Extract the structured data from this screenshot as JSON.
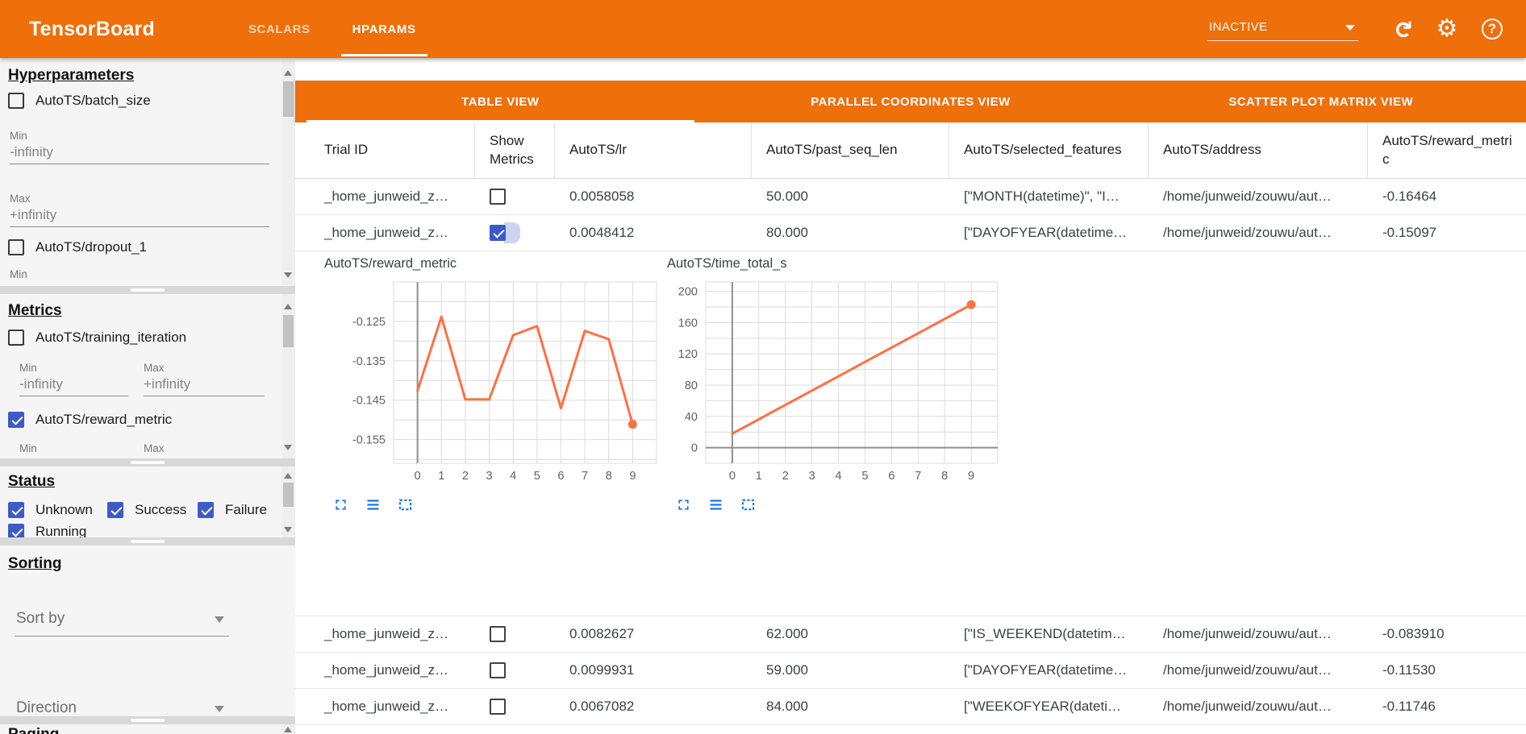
{
  "header": {
    "title": "TensorBoard",
    "tabs": [
      {
        "label": "SCALARS",
        "active": false
      },
      {
        "label": "HPARAMS",
        "active": true
      }
    ],
    "run_selector_value": "INACTIVE",
    "icons": [
      "reload-icon",
      "settings-gear-icon",
      "help-icon"
    ],
    "help_glyph": "?"
  },
  "colors": {
    "header_orange": "#ef6f0b",
    "checkbox_indigo": "#3d5bc6",
    "chart_line_orange": "#ff7043",
    "icon_blue": "#1a73e8"
  },
  "sidebar": {
    "hyperparameters": {
      "heading": "Hyperparameters",
      "items": [
        {
          "label": "AutoTS/batch_size",
          "checked": false,
          "min_label": "Min",
          "min_value": "-infinity",
          "max_label": "Max",
          "max_value": "+infinity"
        },
        {
          "label": "AutoTS/dropout_1",
          "checked": false,
          "min_label": "Min"
        }
      ]
    },
    "metrics": {
      "heading": "Metrics",
      "items": [
        {
          "label": "AutoTS/training_iteration",
          "checked": false,
          "min_label": "Min",
          "min_value": "-infinity",
          "max_label": "Max",
          "max_value": "+infinity"
        },
        {
          "label": "AutoTS/reward_metric",
          "checked": true,
          "min_label": "Min",
          "max_label": "Max"
        }
      ]
    },
    "status": {
      "heading": "Status",
      "options": [
        {
          "label": "Unknown",
          "checked": true
        },
        {
          "label": "Success",
          "checked": true
        },
        {
          "label": "Failure",
          "checked": true
        },
        {
          "label": "Running",
          "checked": true
        }
      ]
    },
    "sorting": {
      "heading": "Sorting",
      "sort_by_placeholder": "Sort by",
      "direction_placeholder": "Direction"
    },
    "paging": {
      "heading": "Paging"
    }
  },
  "main": {
    "view_tabs": [
      {
        "label": "TABLE VIEW",
        "active": true
      },
      {
        "label": "PARALLEL COORDINATES VIEW",
        "active": false
      },
      {
        "label": "SCATTER PLOT MATRIX VIEW",
        "active": false
      }
    ],
    "table": {
      "columns": [
        "Trial ID",
        "Show Metrics",
        "AutoTS/lr",
        "AutoTS/past_seq_len",
        "AutoTS/selected_features",
        "AutoTS/address",
        "AutoTS/reward_metric"
      ],
      "rows": [
        {
          "trial_id": "_home_junweid_z…",
          "show_metrics": false,
          "lr": "0.0058058",
          "past_seq_len": "50.000",
          "selected_features": "[\"MONTH(datetime)\", \"I…",
          "address": "/home/junweid/zouwu/aut…",
          "reward_metric": "-0.16464"
        },
        {
          "trial_id": "_home_junweid_z…",
          "show_metrics": true,
          "lr": "0.0048412",
          "past_seq_len": "80.000",
          "selected_features": "[\"DAYOFYEAR(datetime…",
          "address": "/home/junweid/zouwu/aut…",
          "reward_metric": "-0.15097"
        },
        {
          "trial_id": "_home_junweid_z…",
          "show_metrics": false,
          "lr": "0.0082627",
          "past_seq_len": "62.000",
          "selected_features": "[\"IS_WEEKEND(datetim…",
          "address": "/home/junweid/zouwu/aut…",
          "reward_metric": "-0.083910"
        },
        {
          "trial_id": "_home_junweid_z…",
          "show_metrics": false,
          "lr": "0.0099931",
          "past_seq_len": "59.000",
          "selected_features": "[\"DAYOFYEAR(datetime…",
          "address": "/home/junweid/zouwu/aut…",
          "reward_metric": "-0.11530"
        },
        {
          "trial_id": "_home_junweid_z…",
          "show_metrics": false,
          "lr": "0.0067082",
          "past_seq_len": "84.000",
          "selected_features": "[\"WEEKOFYEAR(dateti…",
          "address": "/home/junweid/zouwu/aut…",
          "reward_metric": "-0.11746"
        }
      ],
      "expanded_after_row": 2
    },
    "chart_data": [
      {
        "type": "line",
        "title": "AutoTS/reward_metric",
        "x": [
          0,
          1,
          2,
          3,
          4,
          5,
          6,
          7,
          8,
          9
        ],
        "values": [
          -0.1426,
          -0.1238,
          -0.1448,
          -0.1448,
          -0.1285,
          -0.1262,
          -0.147,
          -0.1274,
          -0.1295,
          -0.1511
        ],
        "xticks": [
          0,
          1,
          2,
          3,
          4,
          5,
          6,
          7,
          8,
          9
        ],
        "yticks": [
          {
            "v": -0.125,
            "label": "-0.125"
          },
          {
            "v": -0.135,
            "label": "-0.135"
          },
          {
            "v": -0.145,
            "label": "-0.145"
          },
          {
            "v": -0.155,
            "label": "-0.155"
          }
        ],
        "ylim": [
          -0.161,
          -0.115
        ],
        "xlim": [
          -1,
          10
        ],
        "ygrid_step": 0.005,
        "zero_x_axis": true,
        "zero_y_axis": false,
        "end_marker": true,
        "line_color": "#ff7043",
        "grid": true,
        "legend": "none",
        "ml": 86,
        "pw": 326
      },
      {
        "type": "line",
        "title": "AutoTS/time_total_s",
        "x": [
          0,
          1,
          2,
          3,
          4,
          5,
          6,
          7,
          8,
          9
        ],
        "values": [
          18,
          36.3,
          54.7,
          73,
          91.3,
          109.7,
          128,
          146.3,
          164.7,
          183
        ],
        "xticks": [
          0,
          1,
          2,
          3,
          4,
          5,
          6,
          7,
          8,
          9
        ],
        "yticks": [
          {
            "v": 200,
            "label": "200"
          },
          {
            "v": 160,
            "label": "160"
          },
          {
            "v": 120,
            "label": "120"
          },
          {
            "v": 80,
            "label": "80"
          },
          {
            "v": 40,
            "label": "40"
          },
          {
            "v": 0,
            "label": "0"
          }
        ],
        "ylim": [
          -20,
          212
        ],
        "xlim": [
          -1,
          10
        ],
        "ygrid_step": 20,
        "zero_x_axis": true,
        "zero_y_axis": true,
        "end_marker": true,
        "line_color": "#ff7043",
        "grid": true,
        "legend": "none",
        "ml": 48,
        "pw": 362
      }
    ]
  }
}
